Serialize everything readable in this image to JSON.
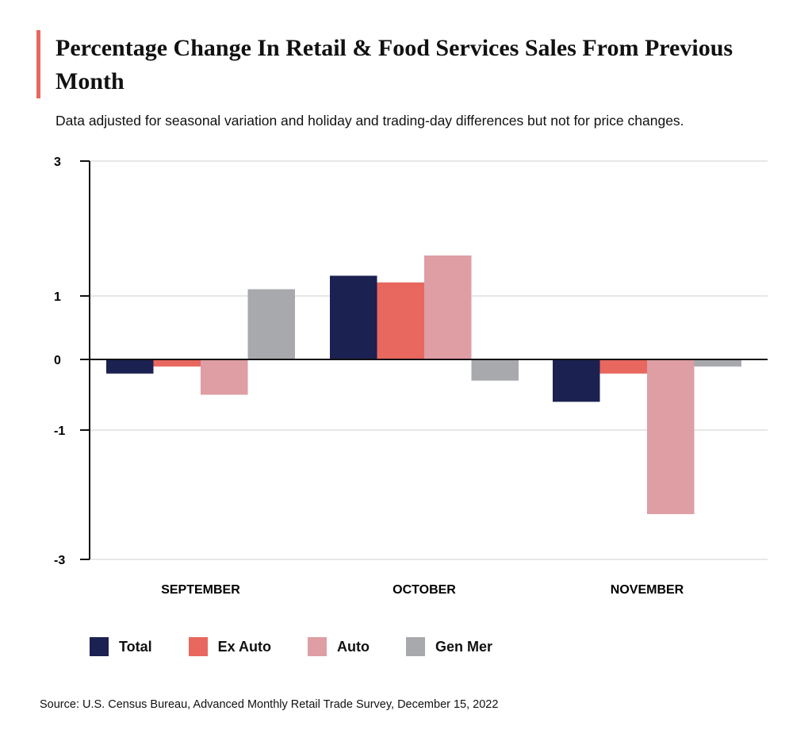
{
  "chart_data": {
    "type": "bar",
    "title": "Percentage Change In Retail & Food Services Sales From Previous Month",
    "subtitle": "Data adjusted for seasonal variation and holiday and trading-day differences but not for price changes.",
    "categories": [
      "SEPTEMBER",
      "OCTOBER",
      "NOVEMBER"
    ],
    "series": [
      {
        "name": "Total",
        "color": "#1b2150",
        "values": [
          -0.2,
          1.3,
          -0.6
        ]
      },
      {
        "name": "Ex Auto",
        "color": "#e8675e",
        "values": [
          -0.1,
          1.2,
          -0.2
        ]
      },
      {
        "name": "Auto",
        "color": "#de9ea3",
        "values": [
          -0.5,
          1.6,
          -2.3
        ]
      },
      {
        "name": "Gen Mer",
        "color": "#a8a9ad",
        "values": [
          1.1,
          -0.3,
          -0.1
        ]
      }
    ],
    "yticks": [
      "3",
      "1",
      "0",
      "-1",
      "-3"
    ],
    "ylim": [
      -3,
      3
    ],
    "grid": true,
    "legend": "bottom-left",
    "source": "Source: U.S. Census Bureau, Advanced Monthly Retail Trade Survey, December 15, 2022"
  }
}
